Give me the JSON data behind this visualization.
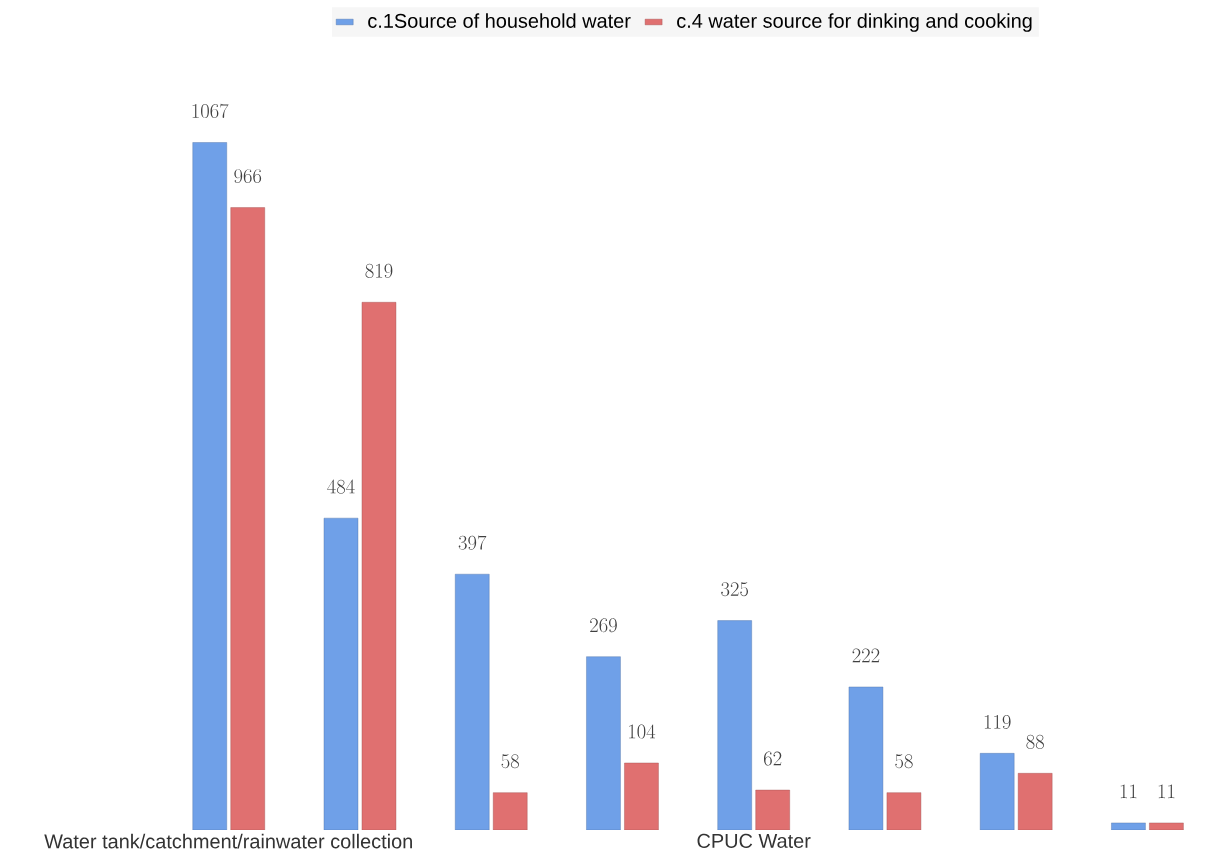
{
  "chart_data": {
    "type": "bar",
    "categories": [
      "Water tank/catchment/rainwater collection",
      null,
      null,
      null,
      "CPUC Water",
      null,
      null,
      null
    ],
    "series": [
      {
        "name": "c.1Source of household water",
        "color": "#6fa0e8",
        "values": [
          1067,
          484,
          397,
          269,
          325,
          222,
          119,
          11
        ]
      },
      {
        "name": "c.4 water source for dinking and cooking",
        "color": "#e07070",
        "values": [
          966,
          819,
          58,
          104,
          62,
          58,
          88,
          11
        ]
      }
    ],
    "data_labels": true,
    "legend": "top",
    "grid": false
  }
}
